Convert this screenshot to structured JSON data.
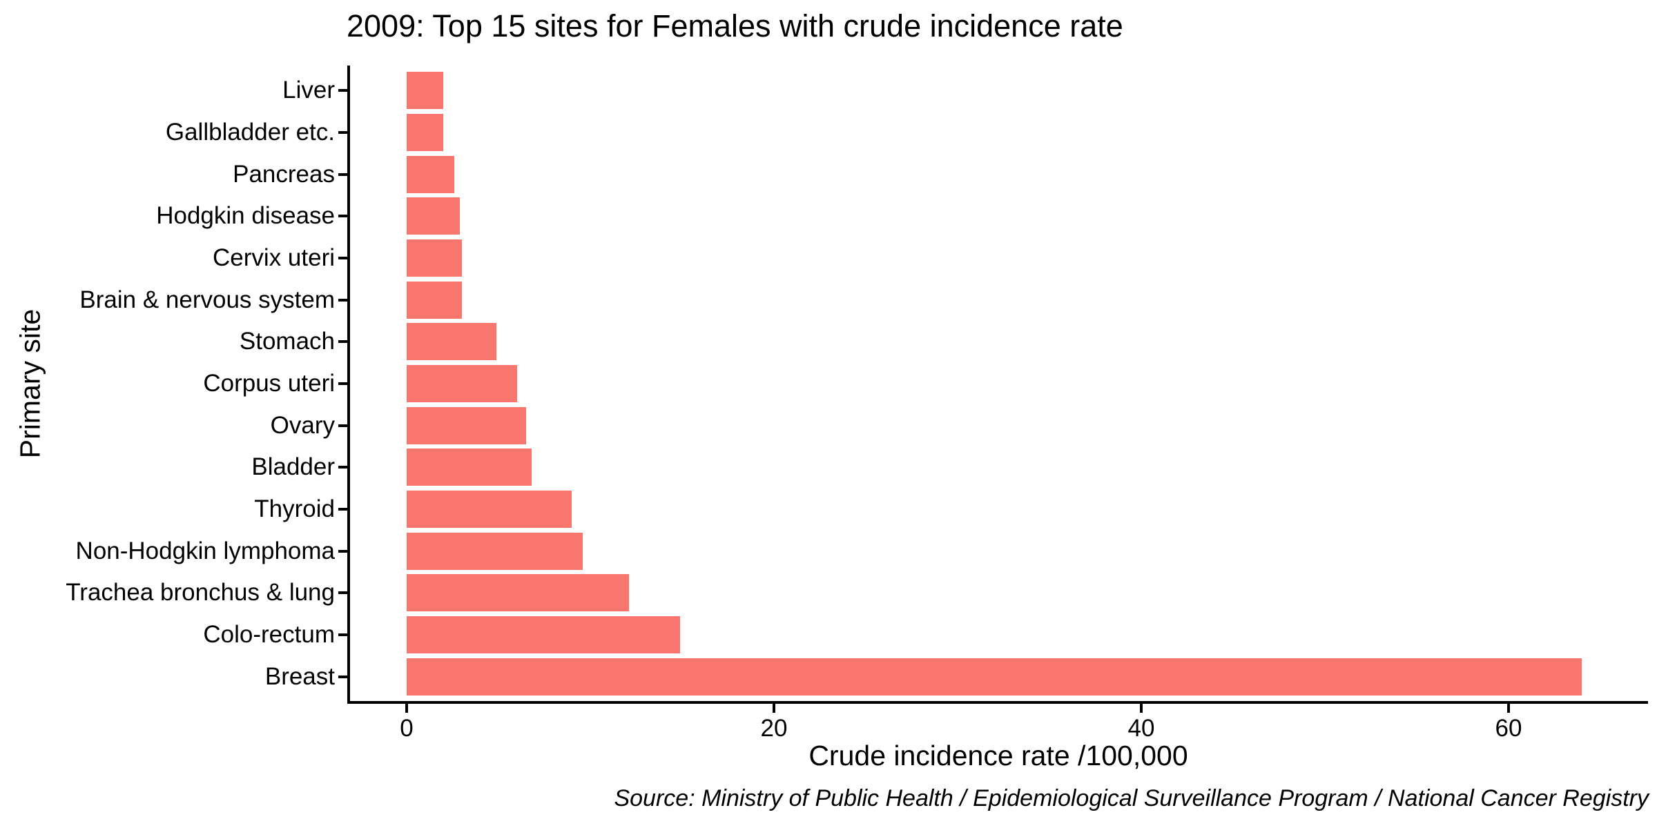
{
  "chart_data": {
    "type": "bar",
    "orientation": "horizontal",
    "title": "2009: Top 15 sites for Females with crude incidence rate",
    "xlabel": "Crude incidence rate /100,000",
    "ylabel": "Primary site",
    "source_note": "Source: Ministry of Public Health / Epidemiological Surveillance Program / National Cancer Registry",
    "categories": [
      "Liver",
      "Gallbladder etc.",
      "Pancreas",
      "Hodgkin disease",
      "Cervix uteri",
      "Brain & nervous system",
      "Stomach",
      "Corpus uteri",
      "Ovary",
      "Bladder",
      "Thyroid",
      "Non-Hodgkin lymphoma",
      "Trachea bronchus & lung",
      "Colo-rectum",
      "Breast"
    ],
    "values": [
      2.0,
      2.0,
      2.6,
      2.9,
      3.0,
      3.0,
      4.9,
      6.0,
      6.5,
      6.8,
      9.0,
      9.6,
      12.1,
      14.9,
      64.0
    ],
    "x_ticks": [
      0,
      20,
      40,
      60
    ],
    "xlim": [
      -3.1,
      67.7
    ],
    "bar_color": "#F8766D",
    "axis_color": "#000000",
    "grid": false,
    "legend": false
  }
}
